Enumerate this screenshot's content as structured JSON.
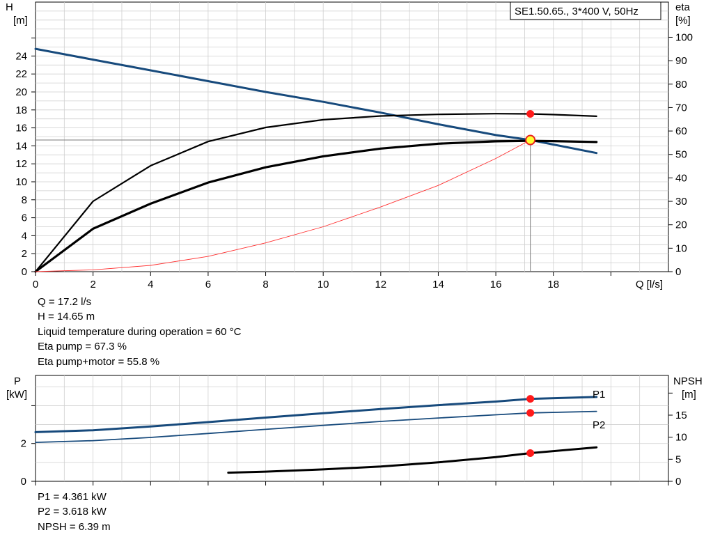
{
  "chart_data": [
    {
      "type": "line",
      "title": "SE1.50.65., 3*400 V, 50Hz",
      "xlabel": "Q [l/s]",
      "ylabel": [
        "H",
        "[m]"
      ],
      "y2label": [
        "eta",
        "[%]"
      ],
      "xlim": [
        0,
        22
      ],
      "ylim": [
        0,
        30
      ],
      "y2lim": [
        0,
        115
      ],
      "xticks": [
        0,
        2,
        4,
        6,
        8,
        10,
        12,
        14,
        16,
        18
      ],
      "yticks": [
        0,
        2,
        4,
        6,
        8,
        10,
        12,
        14,
        16,
        18,
        20,
        22,
        24
      ],
      "y2ticks": [
        0,
        10,
        20,
        30,
        40,
        50,
        60,
        70,
        80,
        90,
        100
      ],
      "grid": true,
      "series": [
        {
          "axis": "H",
          "color": "#174a7c",
          "width": 3,
          "x": [
            0,
            2,
            4,
            6,
            8,
            10,
            12,
            14,
            16,
            17.2,
            19.5
          ],
          "y": [
            24.8,
            23.6,
            22.4,
            21.2,
            20.0,
            18.9,
            17.7,
            16.4,
            15.2,
            14.65,
            13.2
          ]
        },
        {
          "axis": "eta",
          "color": "#000000",
          "width": 2.2,
          "x": [
            0,
            2,
            4,
            6,
            8,
            10,
            12,
            14,
            16,
            17.2,
            18,
            19.5
          ],
          "y": [
            0,
            30,
            45.2,
            55.5,
            61.5,
            64.8,
            66.4,
            67.1,
            67.4,
            67.3,
            67,
            66.3
          ]
        },
        {
          "axis": "eta",
          "color": "#000000",
          "width": 3.2,
          "x": [
            0,
            2,
            4,
            6,
            8,
            10,
            12,
            14,
            16,
            17.2,
            18,
            19.5
          ],
          "y": [
            0,
            18.3,
            29,
            38,
            44.5,
            49.2,
            52.5,
            54.6,
            55.6,
            55.8,
            55.7,
            55.3
          ]
        },
        {
          "axis": "H",
          "color": "#ff3030",
          "width": 0.9,
          "x": [
            0,
            2,
            4,
            6,
            8,
            10,
            12,
            14,
            16,
            17.2
          ],
          "y": [
            0,
            0.2,
            0.7,
            1.7,
            3.2,
            5.0,
            7.2,
            9.6,
            12.6,
            14.65
          ]
        }
      ],
      "operating_point": {
        "x": 17.2,
        "y": 14.65
      },
      "duty_markers": [
        {
          "axis": "eta",
          "x": 17.2,
          "y": 67.3
        },
        {
          "axis": "eta",
          "x": 17.2,
          "y": 55.8
        }
      ]
    },
    {
      "type": "line",
      "ylabel": [
        "P",
        "[kW]"
      ],
      "y2label": [
        "NPSH",
        "[m]"
      ],
      "xlim": [
        0,
        22
      ],
      "ylim": [
        0,
        5.6
      ],
      "y2lim": [
        0,
        24
      ],
      "yticks": [
        0,
        2
      ],
      "y2ticks": [
        0,
        5,
        10,
        15
      ],
      "grid": true,
      "series": [
        {
          "name": "P1",
          "axis": "P",
          "color": "#174a7c",
          "width": 3,
          "x": [
            0,
            2,
            4,
            6,
            8,
            10,
            12,
            14,
            16,
            17.2,
            19.5
          ],
          "y": [
            2.6,
            2.7,
            2.9,
            3.13,
            3.37,
            3.6,
            3.82,
            4.03,
            4.22,
            4.361,
            4.46
          ]
        },
        {
          "name": "P2",
          "axis": "P",
          "color": "#174a7c",
          "width": 1.8,
          "x": [
            0,
            2,
            4,
            6,
            8,
            10,
            12,
            14,
            16,
            17.2,
            19.5
          ],
          "y": [
            2.06,
            2.15,
            2.32,
            2.53,
            2.75,
            2.96,
            3.17,
            3.35,
            3.52,
            3.618,
            3.7
          ]
        },
        {
          "axis": "NPSH",
          "color": "#000000",
          "width": 3,
          "x": [
            6.7,
            8,
            10,
            12,
            14,
            16,
            17.2,
            19.5
          ],
          "y": [
            1.95,
            2.2,
            2.7,
            3.35,
            4.3,
            5.5,
            6.39,
            7.7
          ]
        }
      ],
      "duty_markers": [
        {
          "axis": "P",
          "x": 17.2,
          "y": 4.361
        },
        {
          "axis": "P",
          "x": 17.2,
          "y": 3.618
        },
        {
          "axis": "NPSH",
          "x": 17.2,
          "y": 6.39
        }
      ]
    }
  ],
  "info_top": [
    {
      "label": "Q = ",
      "value": "17.2 l/s"
    },
    {
      "label": "H = ",
      "value": "14.65 m"
    },
    {
      "label": "Liquid temperature during operation = ",
      "value": "60 °C"
    },
    {
      "label": "Eta pump = ",
      "value": "67.3 %"
    },
    {
      "label": "Eta pump+motor = ",
      "value": "55.8 %"
    }
  ],
  "info_bottom": [
    {
      "label": "P1 = ",
      "value": "4.361 kW"
    },
    {
      "label": "P2 = ",
      "value": "3.618 kW"
    },
    {
      "label": "NPSH = ",
      "value": "6.39 m"
    }
  ]
}
